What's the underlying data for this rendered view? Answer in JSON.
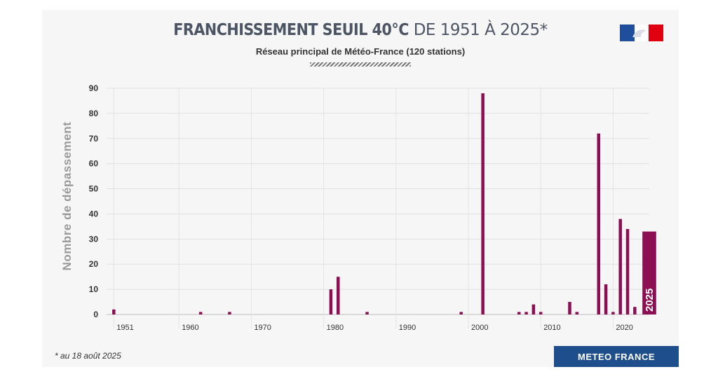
{
  "header": {
    "title_strong": "FRANCHISSEMENT SEUIL 40°C",
    "title_light": " DE 1951 À 2025*",
    "subtitle": "Réseau principal de Météo-France (120 stations)"
  },
  "footer": {
    "footnote": "* au 18 août 2025",
    "brand": "METEO FRANCE"
  },
  "colors": {
    "bar": "#8b0f52",
    "brand": "#1f4e8c",
    "flag_blue": "#1f4e9c",
    "flag_red": "#e1000f"
  },
  "chart_data": {
    "type": "bar",
    "title": "FRANCHISSEMENT SEUIL 40°C DE 1951 À 2025*",
    "subtitle": "Réseau principal de Météo-France (120 stations)",
    "ylabel": "Nombre de dépassement",
    "ylim": [
      0,
      90
    ],
    "yticks": [
      0,
      10,
      20,
      30,
      40,
      50,
      60,
      70,
      80,
      90
    ],
    "xlim": [
      1950,
      2025
    ],
    "xticks": [
      1951,
      1960,
      1970,
      1980,
      1990,
      2000,
      2010,
      2020
    ],
    "grid": true,
    "bars": [
      {
        "year": 1951,
        "value": 2
      },
      {
        "year": 1963,
        "value": 1
      },
      {
        "year": 1967,
        "value": 1
      },
      {
        "year": 1981,
        "value": 10
      },
      {
        "year": 1982,
        "value": 15
      },
      {
        "year": 1986,
        "value": 1
      },
      {
        "year": 1999,
        "value": 1
      },
      {
        "year": 2002,
        "value": 88
      },
      {
        "year": 2007,
        "value": 1
      },
      {
        "year": 2008,
        "value": 1
      },
      {
        "year": 2009,
        "value": 4
      },
      {
        "year": 2010,
        "value": 1
      },
      {
        "year": 2014,
        "value": 5
      },
      {
        "year": 2015,
        "value": 1
      },
      {
        "year": 2018,
        "value": 72
      },
      {
        "year": 2019,
        "value": 12
      },
      {
        "year": 2020,
        "value": 1
      },
      {
        "year": 2021,
        "value": 38
      },
      {
        "year": 2022,
        "value": 34
      },
      {
        "year": 2023,
        "value": 3
      },
      {
        "year": 2025,
        "value": 33,
        "label": "2025",
        "highlight": true
      }
    ]
  }
}
